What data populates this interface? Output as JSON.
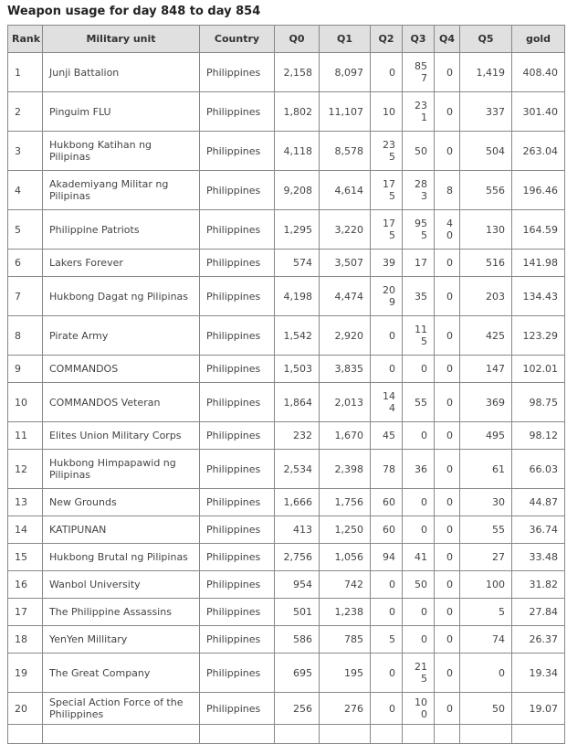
{
  "title": "Weapon usage for day 848 to day 854",
  "colors": {
    "header_bg": "#e0e0e0",
    "border": "#888888",
    "title_text": "#222222",
    "cell_text": "#444444"
  },
  "table": {
    "columns": [
      "Rank",
      "Military unit",
      "Country",
      "Q0",
      "Q1",
      "Q2",
      "Q3",
      "Q4",
      "Q5",
      "gold"
    ],
    "rows": [
      {
        "cells": [
          "1",
          "Junji Battalion",
          "Philippines",
          "2,158",
          "8,097",
          "0",
          "857",
          "0",
          "1,419",
          "408.40"
        ]
      },
      {
        "cells": [
          "2",
          "Pinguim FLU",
          "Philippines",
          "1,802",
          "11,107",
          "10",
          "231",
          "0",
          "337",
          "301.40"
        ]
      },
      {
        "cells": [
          "3",
          "Hukbong Katihan ng Pilipinas",
          "Philippines",
          "4,118",
          "8,578",
          "235",
          "50",
          "0",
          "504",
          "263.04"
        ]
      },
      {
        "cells": [
          "4",
          "Akademiyang Militar ng Pilipinas",
          "Philippines",
          "9,208",
          "4,614",
          "175",
          "283",
          "8",
          "556",
          "196.46"
        ]
      },
      {
        "cells": [
          "5",
          "Philippine Patriots",
          "Philippines",
          "1,295",
          "3,220",
          "175",
          "955",
          "40",
          "130",
          "164.59"
        ]
      },
      {
        "cells": [
          "6",
          "Lakers Forever",
          "Philippines",
          "574",
          "3,507",
          "39",
          "17",
          "0",
          "516",
          "141.98"
        ]
      },
      {
        "cells": [
          "7",
          "Hukbong Dagat ng Pilipinas",
          "Philippines",
          "4,198",
          "4,474",
          "209",
          "35",
          "0",
          "203",
          "134.43"
        ]
      },
      {
        "cells": [
          "8",
          "Pirate Army",
          "Philippines",
          "1,542",
          "2,920",
          "0",
          "115",
          "0",
          "425",
          "123.29"
        ]
      },
      {
        "cells": [
          "9",
          "COMMANDOS",
          "Philippines",
          "1,503",
          "3,835",
          "0",
          "0",
          "0",
          "147",
          "102.01"
        ]
      },
      {
        "cells": [
          "10",
          "COMMANDOS Veteran",
          "Philippines",
          "1,864",
          "2,013",
          "144",
          "55",
          "0",
          "369",
          "98.75"
        ]
      },
      {
        "cells": [
          "11",
          "Elites Union Military Corps",
          "Philippines",
          "232",
          "1,670",
          "45",
          "0",
          "0",
          "495",
          "98.12"
        ]
      },
      {
        "cells": [
          "12",
          "Hukbong Himpapawid ng Pilipinas",
          "Philippines",
          "2,534",
          "2,398",
          "78",
          "36",
          "0",
          "61",
          "66.03"
        ]
      },
      {
        "cells": [
          "13",
          "New Grounds",
          "Philippines",
          "1,666",
          "1,756",
          "60",
          "0",
          "0",
          "30",
          "44.87"
        ]
      },
      {
        "cells": [
          "14",
          "KATIPUNAN",
          "Philippines",
          "413",
          "1,250",
          "60",
          "0",
          "0",
          "55",
          "36.74"
        ]
      },
      {
        "cells": [
          "15",
          "Hukbong Brutal ng Pilipinas",
          "Philippines",
          "2,756",
          "1,056",
          "94",
          "41",
          "0",
          "27",
          "33.48"
        ]
      },
      {
        "cells": [
          "16",
          "Wanbol University",
          "Philippines",
          "954",
          "742",
          "0",
          "50",
          "0",
          "100",
          "31.82"
        ]
      },
      {
        "cells": [
          "17",
          "The Philippine Assassins",
          "Philippines",
          "501",
          "1,238",
          "0",
          "0",
          "0",
          "5",
          "27.84"
        ]
      },
      {
        "cells": [
          "18",
          "YenYen Millitary",
          "Philippines",
          "586",
          "785",
          "5",
          "0",
          "0",
          "74",
          "26.37"
        ]
      },
      {
        "cells": [
          "19",
          "The Great Company",
          "Philippines",
          "695",
          "195",
          "0",
          "215",
          "0",
          "0",
          "19.34"
        ]
      },
      {
        "cells": [
          "20",
          "Special Action Force of the Philippines",
          "Philippines",
          "256",
          "276",
          "0",
          "100",
          "0",
          "50",
          "19.07"
        ]
      }
    ]
  }
}
